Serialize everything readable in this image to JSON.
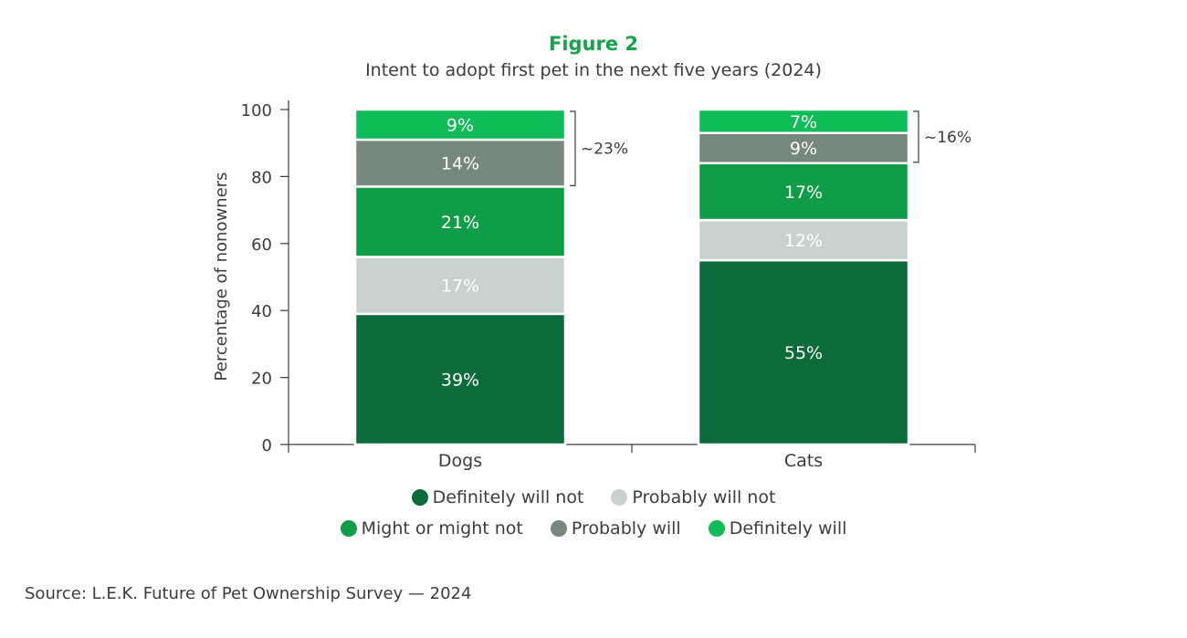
{
  "figure_label": "Figure 2",
  "chart_data": {
    "type": "bar",
    "stacked": true,
    "title": "Figure 2",
    "subtitle": "Intent to adopt first pet in the next five years (2024)",
    "xlabel": "",
    "ylabel": "Percentage of nonowners",
    "ylim": [
      0,
      100
    ],
    "yticks": [
      0,
      20,
      40,
      60,
      80,
      100
    ],
    "categories": [
      "Dogs",
      "Cats"
    ],
    "series": [
      {
        "name": "Definitely will not",
        "color": "#0b6b3a",
        "values": [
          39,
          55
        ],
        "labels": [
          "39%",
          "55%"
        ],
        "label_color": "#ffffff"
      },
      {
        "name": "Probably will not",
        "color": "#c9d1ce",
        "values": [
          17,
          12
        ],
        "labels": [
          "17%",
          "12%"
        ],
        "label_color": "#555555"
      },
      {
        "name": "Might or might not",
        "color": "#0f9d48",
        "values": [
          21,
          17
        ],
        "labels": [
          "21%",
          "17%"
        ],
        "label_color": "#ffffff"
      },
      {
        "name": "Probably will",
        "color": "#76877d",
        "values": [
          14,
          9
        ],
        "labels": [
          "14%",
          "9%"
        ],
        "label_color": "#ffffff"
      },
      {
        "name": "Definitely will",
        "color": "#0ebc58",
        "values": [
          9,
          7
        ],
        "labels": [
          "9%",
          "7%"
        ],
        "label_color": "#ffffff"
      }
    ],
    "annotations": [
      {
        "category": "Dogs",
        "text": "~23%",
        "from_series": 3,
        "to_series": 4
      },
      {
        "category": "Cats",
        "text": "~16%",
        "from_series": 3,
        "to_series": 4
      }
    ],
    "legend_rows": [
      [
        "Definitely will not",
        "Probably will not"
      ],
      [
        "Might or might not",
        "Probably will",
        "Definitely will"
      ]
    ]
  },
  "source": "Source: L.E.K. Future of Pet Ownership Survey — 2024",
  "colors": {
    "title": "#16a34a",
    "axis": "#3c3c3c"
  }
}
